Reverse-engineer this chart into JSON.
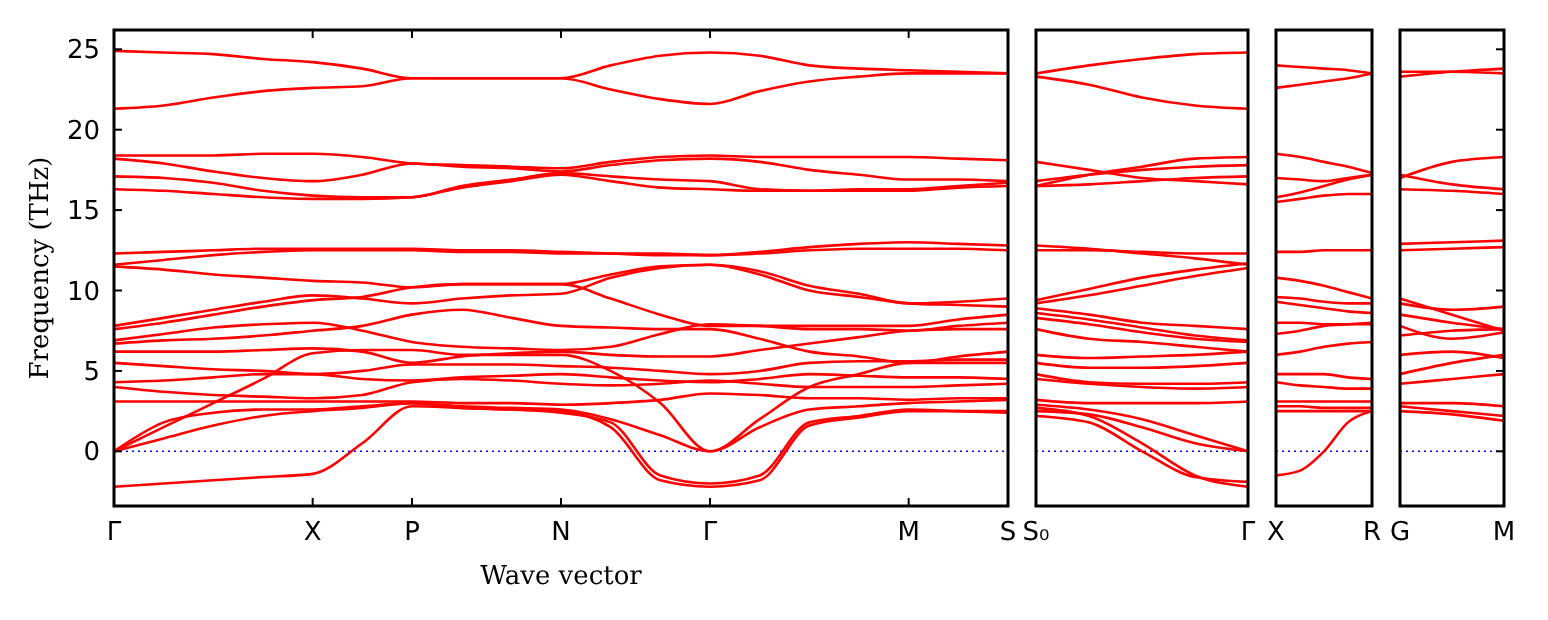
{
  "chart_data": [
    {
      "type": "line",
      "xlabel": "Wave vector",
      "ylabel": "Frequency (THz)",
      "categories": [
        "Γ",
        null,
        null,
        null,
        "X",
        null,
        "P",
        null,
        null,
        "N",
        null,
        null,
        "Γ",
        null,
        null,
        null,
        "M",
        null,
        "S"
      ],
      "ylim": [
        -3.4,
        26.2
      ],
      "yticks": [
        0,
        5,
        10,
        15,
        20,
        25
      ],
      "ref_lines": [
        {
          "axis": "y",
          "value": 0,
          "color": "#0000ff",
          "line_style": "dotted"
        }
      ],
      "series": [
        {
          "color": "#ff0000",
          "values": [
            24.9,
            24.8,
            24.7,
            24.4,
            24.2,
            23.8,
            23.2,
            23.2,
            23.2,
            23.2,
            24.0,
            24.6,
            24.8,
            24.6,
            24.0,
            23.8,
            23.7,
            23.6,
            23.5
          ]
        },
        {
          "color": "#ff0000",
          "values": [
            21.3,
            21.5,
            22.0,
            22.4,
            22.6,
            22.7,
            23.2,
            23.2,
            23.2,
            23.2,
            22.5,
            21.9,
            21.6,
            22.4,
            23.0,
            23.3,
            23.5,
            23.5,
            23.5
          ]
        },
        {
          "color": "#ff0000",
          "values": [
            18.4,
            18.4,
            18.4,
            18.5,
            18.5,
            18.3,
            17.9,
            17.8,
            17.7,
            17.6,
            18.0,
            18.3,
            18.4,
            18.3,
            18.3,
            18.3,
            18.3,
            18.2,
            18.1
          ]
        },
        {
          "color": "#ff0000",
          "values": [
            18.2,
            17.9,
            17.4,
            17.0,
            16.8,
            17.2,
            17.9,
            17.7,
            17.6,
            17.4,
            17.8,
            18.1,
            18.2,
            18.0,
            17.5,
            17.2,
            16.9,
            16.9,
            16.8
          ]
        },
        {
          "color": "#ff0000",
          "values": [
            17.1,
            17.0,
            16.7,
            16.2,
            15.9,
            15.8,
            15.8,
            16.5,
            16.9,
            17.3,
            17.1,
            16.9,
            16.8,
            16.3,
            16.2,
            16.3,
            16.3,
            16.5,
            16.7
          ]
        },
        {
          "color": "#ff0000",
          "values": [
            16.3,
            16.2,
            16.0,
            15.8,
            15.7,
            15.7,
            15.8,
            16.4,
            16.8,
            17.2,
            16.8,
            16.4,
            16.3,
            16.2,
            16.2,
            16.2,
            16.2,
            16.4,
            16.5
          ]
        },
        {
          "color": "#ff0000",
          "values": [
            12.3,
            12.4,
            12.5,
            12.6,
            12.6,
            12.6,
            12.6,
            12.5,
            12.5,
            12.4,
            12.3,
            12.2,
            12.2,
            12.4,
            12.7,
            12.9,
            13.0,
            12.9,
            12.8
          ]
        },
        {
          "color": "#ff0000",
          "values": [
            11.6,
            11.9,
            12.2,
            12.4,
            12.5,
            12.5,
            12.5,
            12.4,
            12.4,
            12.3,
            12.3,
            12.3,
            12.2,
            12.3,
            12.5,
            12.6,
            12.6,
            12.6,
            12.5
          ]
        },
        {
          "color": "#ff0000",
          "values": [
            11.5,
            11.3,
            11.0,
            10.8,
            10.6,
            10.5,
            10.2,
            10.4,
            10.4,
            10.4,
            11.0,
            11.5,
            11.6,
            11.2,
            10.3,
            9.8,
            9.2,
            9.3,
            9.5
          ]
        },
        {
          "color": "#ff0000",
          "values": [
            7.8,
            8.3,
            8.8,
            9.3,
            9.7,
            9.5,
            9.2,
            9.5,
            9.7,
            9.8,
            10.8,
            11.4,
            11.6,
            11.0,
            10.0,
            9.6,
            9.2,
            9.1,
            9.0
          ]
        },
        {
          "color": "#ff0000",
          "values": [
            7.6,
            8.0,
            8.5,
            9.0,
            9.4,
            9.6,
            10.2,
            10.4,
            10.4,
            10.4,
            9.5,
            8.5,
            7.8,
            7.8,
            7.8,
            7.8,
            7.8,
            8.2,
            8.5
          ]
        },
        {
          "color": "#ff0000",
          "values": [
            6.9,
            7.3,
            7.7,
            7.9,
            8.0,
            7.5,
            6.8,
            6.5,
            6.4,
            6.3,
            6.5,
            7.3,
            7.9,
            7.8,
            7.6,
            7.6,
            7.5,
            7.8,
            8.0
          ]
        },
        {
          "color": "#ff0000",
          "values": [
            6.7,
            6.9,
            7.0,
            7.2,
            7.5,
            7.8,
            8.5,
            8.8,
            8.3,
            7.8,
            7.7,
            7.6,
            7.6,
            7.0,
            6.2,
            5.9,
            5.5,
            5.9,
            6.2
          ]
        },
        {
          "color": "#ff0000",
          "values": [
            6.2,
            6.2,
            6.2,
            6.3,
            6.4,
            6.2,
            5.5,
            5.9,
            6.1,
            6.2,
            6.0,
            5.9,
            5.9,
            6.3,
            6.7,
            7.1,
            7.5,
            7.6,
            7.6
          ]
        },
        {
          "color": "#ff0000",
          "values": [
            5.5,
            5.3,
            5.1,
            5.0,
            4.8,
            5.0,
            5.4,
            5.4,
            5.4,
            5.3,
            5.2,
            5.0,
            4.8,
            5.0,
            5.5,
            5.6,
            5.6,
            5.7,
            5.7
          ]
        },
        {
          "color": "#ff0000",
          "values": [
            4.3,
            4.4,
            4.6,
            4.8,
            4.8,
            4.5,
            4.4,
            4.6,
            4.7,
            4.8,
            4.6,
            4.4,
            4.3,
            4.5,
            4.8,
            4.7,
            4.6,
            4.6,
            4.5
          ]
        },
        {
          "color": "#ff0000",
          "values": [
            4.0,
            3.7,
            3.5,
            3.4,
            3.3,
            3.5,
            4.3,
            4.5,
            4.4,
            4.2,
            4.1,
            4.2,
            4.4,
            4.2,
            4.0,
            4.0,
            4.0,
            4.1,
            4.2
          ]
        },
        {
          "color": "#ff0000",
          "values": [
            3.1,
            3.1,
            3.1,
            3.1,
            3.1,
            3.1,
            3.1,
            3.0,
            3.0,
            2.9,
            3.0,
            3.2,
            3.6,
            3.5,
            3.3,
            3.3,
            3.2,
            3.3,
            3.3
          ]
        },
        {
          "color": "#ff0000",
          "values": [
            0,
            1.5,
            3.0,
            4.5,
            6.1,
            6.3,
            6.3,
            6.0,
            6.0,
            6.0,
            5.0,
            3.0,
            0,
            2.0,
            4.0,
            4.8,
            5.5,
            5.5,
            5.5
          ]
        },
        {
          "color": "#ff0000",
          "values": [
            0,
            0.8,
            1.6,
            2.2,
            2.5,
            2.7,
            3.0,
            2.8,
            2.7,
            2.6,
            2.0,
            1.0,
            0,
            1.5,
            2.6,
            2.8,
            3.0,
            3.1,
            3.2
          ]
        },
        {
          "color": "#ff0000",
          "values": [
            -2.2,
            -2.0,
            -1.8,
            -1.6,
            -1.4,
            0.5,
            2.8,
            2.7,
            2.6,
            2.5,
            1.5,
            -1.8,
            -2.2,
            -1.8,
            1.6,
            2.1,
            2.5,
            2.5,
            2.5
          ]
        },
        {
          "color": "#ff0000",
          "values": [
            0,
            1.8,
            2.4,
            2.6,
            2.6,
            2.8,
            3.0,
            2.7,
            2.6,
            2.4,
            1.8,
            -1.5,
            -2.0,
            -1.5,
            1.8,
            2.2,
            2.6,
            2.5,
            2.4
          ]
        }
      ]
    },
    {
      "type": "line",
      "categories": [
        "S₀",
        null,
        null,
        null,
        "Γ"
      ],
      "ylim": [
        -3.4,
        26.2
      ],
      "yticks": [
        0,
        5,
        10,
        15,
        20,
        25
      ],
      "tick_labels": "x",
      "ref_lines": [
        {
          "axis": "y",
          "value": 0,
          "color": "#0000ff",
          "line_style": "dotted"
        }
      ],
      "series": [
        {
          "color": "#ff0000",
          "values": [
            23.5,
            24.0,
            24.4,
            24.7,
            24.8
          ]
        },
        {
          "color": "#ff0000",
          "values": [
            23.3,
            22.8,
            22.0,
            21.5,
            21.3
          ]
        },
        {
          "color": "#ff0000",
          "values": [
            18.0,
            17.5,
            17.0,
            16.8,
            16.6
          ]
        },
        {
          "color": "#ff0000",
          "values": [
            16.5,
            17.2,
            17.7,
            18.2,
            18.3
          ]
        },
        {
          "color": "#ff0000",
          "values": [
            16.8,
            17.2,
            17.5,
            17.7,
            17.8
          ]
        },
        {
          "color": "#ff0000",
          "values": [
            16.5,
            16.6,
            16.8,
            17.0,
            17.1
          ]
        },
        {
          "color": "#ff0000",
          "values": [
            12.8,
            12.6,
            12.3,
            12.0,
            11.6
          ]
        },
        {
          "color": "#ff0000",
          "values": [
            12.5,
            12.5,
            12.4,
            12.3,
            12.3
          ]
        },
        {
          "color": "#ff0000",
          "values": [
            9.4,
            10.1,
            10.8,
            11.3,
            11.7
          ]
        },
        {
          "color": "#ff0000",
          "values": [
            9.2,
            9.7,
            10.3,
            10.9,
            11.4
          ]
        },
        {
          "color": "#ff0000",
          "values": [
            8.9,
            8.5,
            8.0,
            7.8,
            7.6
          ]
        },
        {
          "color": "#ff0000",
          "values": [
            8.6,
            8.2,
            7.7,
            7.2,
            6.9
          ]
        },
        {
          "color": "#ff0000",
          "values": [
            8.3,
            7.9,
            7.4,
            7.0,
            6.8
          ]
        },
        {
          "color": "#ff0000",
          "values": [
            7.6,
            7.0,
            6.8,
            6.5,
            6.2
          ]
        },
        {
          "color": "#ff0000",
          "values": [
            6.0,
            5.8,
            5.9,
            6.0,
            6.2
          ]
        },
        {
          "color": "#ff0000",
          "values": [
            5.5,
            5.2,
            5.2,
            5.3,
            5.5
          ]
        },
        {
          "color": "#ff0000",
          "values": [
            4.8,
            4.3,
            4.2,
            4.2,
            4.3
          ]
        },
        {
          "color": "#ff0000",
          "values": [
            4.5,
            4.2,
            4.0,
            3.9,
            4.0
          ]
        },
        {
          "color": "#ff0000",
          "values": [
            3.2,
            3.0,
            3.0,
            3.0,
            3.1
          ]
        },
        {
          "color": "#ff0000",
          "values": [
            2.9,
            2.6,
            2.0,
            1.0,
            0
          ]
        },
        {
          "color": "#ff0000",
          "values": [
            2.5,
            2.3,
            1.5,
            0.5,
            0
          ]
        },
        {
          "color": "#ff0000",
          "values": [
            2.7,
            2.2,
            0.5,
            -1.5,
            -2.2
          ]
        },
        {
          "color": "#ff0000",
          "values": [
            2.2,
            1.8,
            0,
            -1.6,
            -1.9
          ]
        }
      ]
    },
    {
      "type": "line",
      "categories": [
        "X",
        null,
        null,
        null,
        "R"
      ],
      "ylim": [
        -3.4,
        26.2
      ],
      "yticks": [
        0,
        5,
        10,
        15,
        20,
        25
      ],
      "tick_labels": "x",
      "ref_lines": [
        {
          "axis": "y",
          "value": 0,
          "color": "#0000ff",
          "line_style": "dotted"
        }
      ],
      "series": [
        {
          "color": "#ff0000",
          "values": [
            24.0,
            23.9,
            23.8,
            23.7,
            23.5
          ]
        },
        {
          "color": "#ff0000",
          "values": [
            22.6,
            22.8,
            23.0,
            23.2,
            23.5
          ]
        },
        {
          "color": "#ff0000",
          "values": [
            18.5,
            18.3,
            18.0,
            17.7,
            17.3
          ]
        },
        {
          "color": "#ff0000",
          "values": [
            17.0,
            16.9,
            16.8,
            17.0,
            17.2
          ]
        },
        {
          "color": "#ff0000",
          "values": [
            15.8,
            16.1,
            16.5,
            16.9,
            17.2
          ]
        },
        {
          "color": "#ff0000",
          "values": [
            15.5,
            15.7,
            15.9,
            16.0,
            16.0
          ]
        },
        {
          "color": "#ff0000",
          "values": [
            12.4,
            12.4,
            12.5,
            12.5,
            12.5
          ]
        },
        {
          "color": "#ff0000",
          "values": [
            10.8,
            10.6,
            10.3,
            9.9,
            9.5
          ]
        },
        {
          "color": "#ff0000",
          "values": [
            9.6,
            9.5,
            9.3,
            9.2,
            9.2
          ]
        },
        {
          "color": "#ff0000",
          "values": [
            9.3,
            9.1,
            8.9,
            8.7,
            8.6
          ]
        },
        {
          "color": "#ff0000",
          "values": [
            8.0,
            8.0,
            7.9,
            7.9,
            7.9
          ]
        },
        {
          "color": "#ff0000",
          "values": [
            7.3,
            7.5,
            7.8,
            7.9,
            8.0
          ]
        },
        {
          "color": "#ff0000",
          "values": [
            6.0,
            6.2,
            6.5,
            6.7,
            6.8
          ]
        },
        {
          "color": "#ff0000",
          "values": [
            4.8,
            4.8,
            4.8,
            4.6,
            4.5
          ]
        },
        {
          "color": "#ff0000",
          "values": [
            4.3,
            4.1,
            4.0,
            3.9,
            3.9
          ]
        },
        {
          "color": "#ff0000",
          "values": [
            3.1,
            3.1,
            3.1,
            3.1,
            3.1
          ]
        },
        {
          "color": "#ff0000",
          "values": [
            2.8,
            2.8,
            2.7,
            2.7,
            2.7
          ]
        },
        {
          "color": "#ff0000",
          "values": [
            2.5,
            2.5,
            2.5,
            2.5,
            2.5
          ]
        },
        {
          "color": "#ff0000",
          "values": [
            -1.5,
            -1.2,
            0,
            1.8,
            2.5
          ]
        }
      ]
    },
    {
      "type": "line",
      "categories": [
        "G",
        null,
        "M"
      ],
      "ylim": [
        -3.4,
        26.2
      ],
      "yticks": [
        0,
        5,
        10,
        15,
        20,
        25
      ],
      "tick_labels": "x",
      "ref_lines": [
        {
          "axis": "y",
          "value": 0,
          "color": "#0000ff",
          "line_style": "dotted"
        }
      ],
      "series": [
        {
          "color": "#ff0000",
          "values": [
            23.3,
            23.6,
            23.8
          ]
        },
        {
          "color": "#ff0000",
          "values": [
            23.6,
            23.6,
            23.5
          ]
        },
        {
          "color": "#ff0000",
          "values": [
            17.0,
            18.0,
            18.3
          ]
        },
        {
          "color": "#ff0000",
          "values": [
            17.2,
            16.6,
            16.3
          ]
        },
        {
          "color": "#ff0000",
          "values": [
            16.3,
            16.2,
            16.0
          ]
        },
        {
          "color": "#ff0000",
          "values": [
            12.9,
            13.0,
            13.1
          ]
        },
        {
          "color": "#ff0000",
          "values": [
            12.5,
            12.6,
            12.7
          ]
        },
        {
          "color": "#ff0000",
          "values": [
            9.5,
            8.5,
            7.5
          ]
        },
        {
          "color": "#ff0000",
          "values": [
            9.2,
            8.8,
            9.0
          ]
        },
        {
          "color": "#ff0000",
          "values": [
            8.5,
            8.0,
            7.6
          ]
        },
        {
          "color": "#ff0000",
          "values": [
            7.8,
            7.0,
            7.4
          ]
        },
        {
          "color": "#ff0000",
          "values": [
            7.2,
            7.5,
            7.6
          ]
        },
        {
          "color": "#ff0000",
          "values": [
            6.0,
            6.2,
            5.8
          ]
        },
        {
          "color": "#ff0000",
          "values": [
            4.8,
            5.5,
            6.0
          ]
        },
        {
          "color": "#ff0000",
          "values": [
            4.2,
            4.5,
            4.8
          ]
        },
        {
          "color": "#ff0000",
          "values": [
            3.0,
            3.0,
            2.8
          ]
        },
        {
          "color": "#ff0000",
          "values": [
            2.8,
            2.5,
            2.2
          ]
        },
        {
          "color": "#ff0000",
          "values": [
            2.5,
            2.3,
            1.9
          ]
        }
      ]
    }
  ]
}
